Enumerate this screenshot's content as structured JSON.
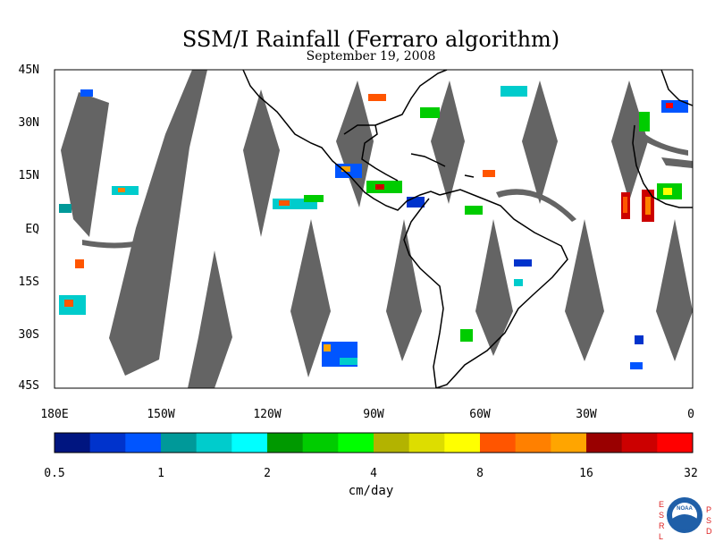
{
  "header": {
    "title": "SSM/I Rainfall (Ferraro algorithm)",
    "date": "September 19, 2008"
  },
  "map": {
    "lon_range": [
      "180E",
      "0"
    ],
    "lat_range": [
      "45S",
      "45N"
    ],
    "lat_labels": [
      "45N",
      "30N",
      "15N",
      "EQ",
      "15S",
      "30S",
      "45S"
    ],
    "lon_labels": [
      "180E",
      "150W",
      "120W",
      "90W",
      "60W",
      "30W",
      "0"
    ],
    "swath_color": "#646464",
    "coastline_color": "#000000"
  },
  "colorbar": {
    "unit": "cm/day",
    "labels": [
      "0.5",
      "1",
      "2",
      "4",
      "8",
      "16",
      "32"
    ],
    "colors": [
      "#001580",
      "#0033cc",
      "#0055ff",
      "#009999",
      "#00cccc",
      "#00ffff",
      "#009900",
      "#00cc00",
      "#00ff00",
      "#b3b300",
      "#dddd00",
      "#ffff00",
      "#ff5500",
      "#ff8000",
      "#ffa500",
      "#990000",
      "#cc0000",
      "#ff0000"
    ]
  },
  "branding": {
    "left_text": [
      "E",
      "S",
      "R",
      "L"
    ],
    "right_text": [
      "P",
      "S",
      "D"
    ],
    "logo_text": "NOAA"
  }
}
